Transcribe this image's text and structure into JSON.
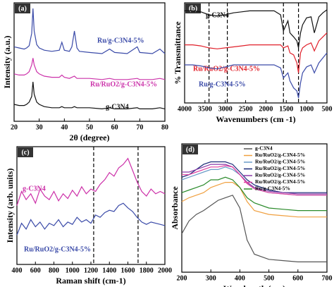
{
  "chart_data": [
    {
      "type": "line",
      "title": "(a)",
      "x_label": "2θ (degree)",
      "y_label": "Intensity (a.u.)",
      "x": [
        20,
        22,
        24,
        25,
        26,
        27,
        27.5,
        28,
        29,
        30,
        32,
        35,
        38,
        39,
        40,
        42,
        43,
        44,
        45,
        46,
        50,
        55,
        58,
        60,
        65,
        69,
        70,
        75,
        78,
        80
      ],
      "series": [
        {
          "name": "Ru/g-C3N4-5%",
          "color": "#3a4aa8",
          "values": [
            66,
            65,
            64,
            65,
            67,
            78,
            100,
            80,
            68,
            65,
            63,
            62,
            63,
            70,
            63,
            62,
            66,
            80,
            65,
            62,
            61,
            60,
            64,
            61,
            60,
            66,
            61,
            60,
            64,
            60
          ]
        },
        {
          "name": "Ru/RuO2/g-C3N4-5%",
          "color": "#cc33aa",
          "values": [
            42,
            41,
            41,
            42,
            44,
            50,
            56,
            50,
            44,
            42,
            40,
            39,
            39,
            41,
            39,
            38,
            39,
            40,
            38,
            38,
            38,
            37,
            38,
            37,
            37,
            38,
            37,
            37,
            38,
            37
          ]
        },
        {
          "name": "g-C3N4",
          "color": "#111111",
          "values": [
            15,
            14,
            14,
            15,
            17,
            22,
            35,
            24,
            17,
            15,
            13,
            12,
            12,
            13,
            12,
            12,
            12,
            13,
            12,
            12,
            12,
            11,
            12,
            11,
            11,
            12,
            11,
            11,
            12,
            11
          ]
        }
      ],
      "xlim": [
        20,
        80
      ],
      "xticks": [
        20,
        30,
        40,
        50,
        60,
        70,
        80
      ],
      "ylim": [
        0,
        105
      ]
    },
    {
      "type": "line",
      "title": "(b)",
      "x_label": "Wavenumbers (cm -1)",
      "y_label": "% Transmittance",
      "x": [
        4000,
        3800,
        3600,
        3400,
        3200,
        3000,
        2800,
        2600,
        2400,
        2200,
        2000,
        1800,
        1640,
        1570,
        1460,
        1410,
        1320,
        1240,
        1200,
        1150,
        1100,
        1000,
        890,
        810,
        700,
        600,
        500
      ],
      "series": [
        {
          "name": "g-C3N4",
          "color": "#111111",
          "values": [
            92,
            92,
            91,
            88,
            87,
            88,
            90,
            91,
            92,
            92,
            92,
            92,
            88,
            72,
            82,
            70,
            66,
            62,
            55,
            70,
            78,
            85,
            86,
            70,
            86,
            90,
            93
          ]
        },
        {
          "name": "Ru/RuO2/g-C3N4-5%",
          "color": "#e0202a",
          "values": [
            58,
            58,
            57,
            55,
            54,
            55,
            56,
            57,
            58,
            58,
            58,
            58,
            58,
            55,
            57,
            50,
            48,
            40,
            30,
            50,
            55,
            58,
            60,
            52,
            62,
            66,
            70
          ]
        },
        {
          "name": "Ru/g-C3N4-5%",
          "color": "#3a4aa8",
          "values": [
            38,
            38,
            37,
            35,
            34,
            36,
            38,
            38,
            38,
            38,
            38,
            38,
            35,
            25,
            30,
            22,
            15,
            12,
            5,
            20,
            30,
            36,
            38,
            30,
            40,
            45,
            50
          ]
        }
      ],
      "vlines": [
        3400,
        2950,
        1570,
        1200
      ],
      "xlim": [
        4000,
        500
      ],
      "xticks": [
        4000,
        3500,
        3000,
        2500,
        2000,
        1500,
        1000,
        500
      ],
      "ylim": [
        0,
        100
      ]
    },
    {
      "type": "line",
      "title": "(c)",
      "x_label": "Raman shift (cm-1)",
      "y_label": "Intensity (arb. units)",
      "x": [
        400,
        450,
        500,
        550,
        600,
        650,
        700,
        750,
        800,
        850,
        900,
        950,
        1000,
        1050,
        1100,
        1150,
        1200,
        1250,
        1300,
        1350,
        1400,
        1450,
        1500,
        1550,
        1600,
        1650,
        1700,
        1750,
        1800,
        1850,
        1900,
        1950,
        2000
      ],
      "series": [
        {
          "name": "g-C3N4",
          "color": "#cc2fa8",
          "values": [
            50,
            62,
            55,
            60,
            52,
            64,
            58,
            55,
            62,
            54,
            60,
            56,
            63,
            58,
            66,
            60,
            64,
            62,
            68,
            72,
            78,
            75,
            82,
            85,
            90,
            80,
            70,
            62,
            58,
            64,
            60,
            62,
            60
          ]
        },
        {
          "name": "Ru/RuO2/g-C3N4-5%",
          "color": "#3a4aa8",
          "values": [
            25,
            35,
            30,
            38,
            32,
            36,
            30,
            35,
            33,
            38,
            32,
            36,
            34,
            40,
            36,
            38,
            35,
            42,
            40,
            44,
            46,
            45,
            50,
            52,
            48,
            45,
            40,
            36,
            34,
            36,
            35,
            34,
            33
          ]
        }
      ],
      "vlines": [
        1230,
        1710
      ],
      "xlim": [
        400,
        2000
      ],
      "xticks": [
        400,
        600,
        800,
        1000,
        1200,
        1400,
        1600,
        1800,
        2000
      ],
      "ylim": [
        0,
        100
      ]
    },
    {
      "type": "line",
      "title": "(d)",
      "x_label": "Wavelength (nm)",
      "y_label": "Absorbance",
      "legend": "top-right",
      "x": [
        200,
        225,
        250,
        275,
        300,
        325,
        350,
        375,
        400,
        425,
        450,
        500,
        550,
        600,
        650,
        700
      ],
      "series": [
        {
          "name": "g-C3N4",
          "color": "#555555",
          "values": [
            30,
            40,
            45,
            48,
            52,
            56,
            58,
            60,
            50,
            25,
            14,
            10,
            9,
            8,
            8,
            8
          ]
        },
        {
          "name": "Ru/RuO2/g-C3N4-5%",
          "color": "#f0a040",
          "values": [
            55,
            58,
            60,
            62,
            66,
            68,
            70,
            70,
            66,
            55,
            48,
            45,
            44,
            43,
            43,
            43
          ]
        },
        {
          "name": "Ru/RuO2/g-C3N4-5%",
          "color": "#6a9cc8",
          "values": [
            72,
            74,
            76,
            78,
            80,
            80,
            82,
            80,
            76,
            70,
            65,
            62,
            61,
            60,
            60,
            60
          ]
        },
        {
          "name": "Ru/RuO2/g-C3N4-5%",
          "color": "#1a2a78",
          "values": [
            74,
            76,
            80,
            84,
            86,
            86,
            86,
            84,
            78,
            72,
            68,
            64,
            62,
            62,
            62,
            62
          ]
        },
        {
          "name": "Ru/RuO2/g-C3N4-5%",
          "color": "#8a3aa8",
          "values": [
            78,
            78,
            80,
            82,
            84,
            84,
            84,
            82,
            76,
            70,
            66,
            63,
            62,
            61,
            61,
            61
          ]
        },
        {
          "name": "Ru/RuO2/g-C3N4-5%",
          "color": "#e040a0",
          "values": [
            76,
            76,
            78,
            80,
            82,
            82,
            83,
            82,
            76,
            69,
            65,
            62,
            61,
            60,
            60,
            60
          ]
        },
        {
          "name": "Ru/g-C3N4-5%",
          "color": "#2a8a2a",
          "values": [
            62,
            64,
            66,
            68,
            72,
            72,
            74,
            72,
            66,
            58,
            54,
            50,
            49,
            48,
            48,
            48
          ]
        }
      ],
      "xlim": [
        200,
        700
      ],
      "xticks": [
        200,
        300,
        400,
        500,
        600,
        700
      ],
      "ylim": [
        0,
        100
      ]
    }
  ]
}
